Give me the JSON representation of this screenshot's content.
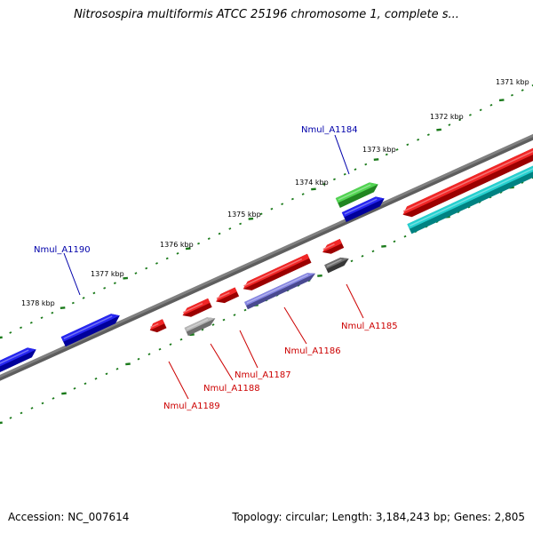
{
  "title": "Nitrosospira multiformis ATCC 25196 chromosome 1, complete s...",
  "footer": {
    "accession": "Accession: NC_007614",
    "summary": "Topology: circular; Length: 3,184,243 bp; Genes: 2,805"
  },
  "ticks": [
    "1371 kbp",
    "1372 kbp",
    "1373 kbp",
    "1374 kbp",
    "1375 kbp",
    "1376 kbp",
    "1377 kbp",
    "1378 kbp"
  ],
  "gene_labels": [
    {
      "id": "Nmul_A1184",
      "strand": "forward",
      "color": "#0000aa"
    },
    {
      "id": "Nmul_A1190",
      "strand": "forward",
      "color": "#0000aa"
    },
    {
      "id": "Nmul_A1185",
      "strand": "reverse",
      "color": "#cc0000"
    },
    {
      "id": "Nmul_A1186",
      "strand": "reverse",
      "color": "#cc0000"
    },
    {
      "id": "Nmul_A1187",
      "strand": "reverse",
      "color": "#cc0000"
    },
    {
      "id": "Nmul_A1188",
      "strand": "reverse",
      "color": "#cc0000"
    },
    {
      "id": "Nmul_A1189",
      "strand": "reverse",
      "color": "#cc0000"
    }
  ],
  "colors": {
    "backbone": "#808080",
    "ticks": "#1a7a1a",
    "forward_gene": "#0000ee",
    "reverse_gene": "#ee0000",
    "rna_gene": "#00c8c8",
    "green_gene": "#33cc33",
    "pseudo_gene": "#aaaaaa",
    "dark_gene": "#555555",
    "lavender_gene": "#7070dd"
  }
}
